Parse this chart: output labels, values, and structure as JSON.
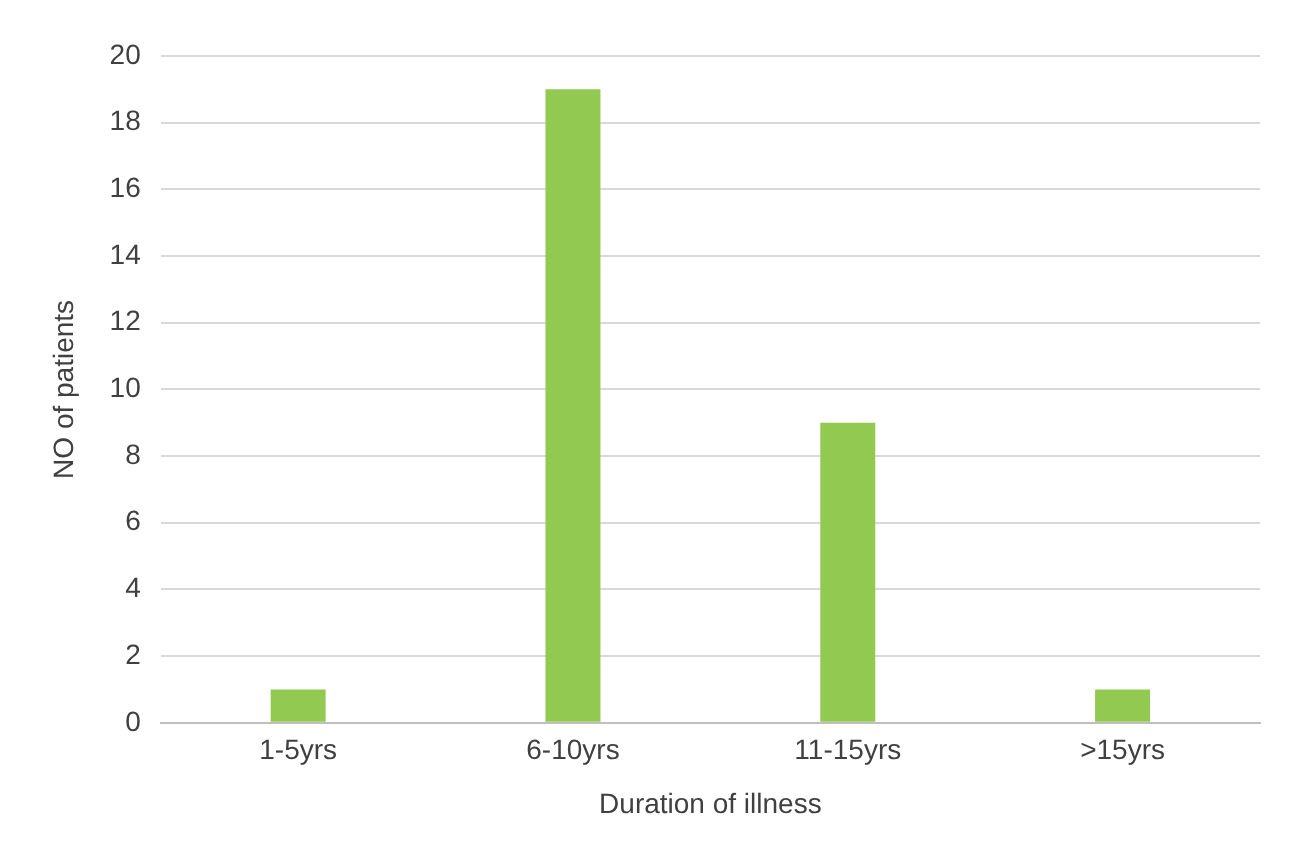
{
  "chart_data": {
    "type": "bar",
    "xlabel": "Duration of illness",
    "ylabel": "NO of patients",
    "categories": [
      "1-5yrs",
      "6-10yrs",
      "11-15yrs",
      ">15yrs"
    ],
    "values": [
      1,
      19,
      9,
      1
    ],
    "color": "#92c950",
    "ylim": [
      0,
      20
    ],
    "yticks": [
      0,
      2,
      4,
      6,
      8,
      10,
      12,
      14,
      16,
      18,
      20
    ],
    "grid": "y"
  }
}
